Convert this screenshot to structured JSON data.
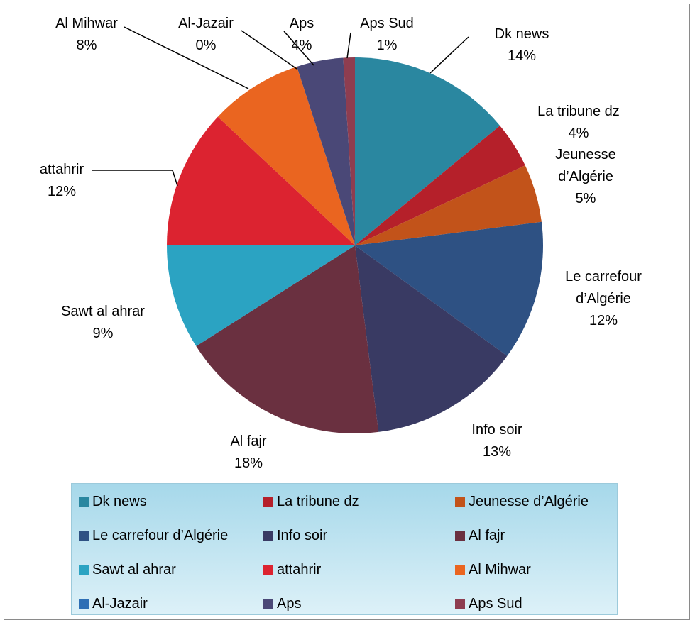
{
  "chart_data": {
    "type": "pie",
    "categories": [
      "Dk news",
      "La tribune dz",
      "Jeunesse d’Algérie",
      "Le carrefour d’Algérie",
      "Info soir",
      "Al fajr",
      "Sawt al ahrar",
      "attahrir",
      "Al Mihwar",
      "Al-Jazair",
      "Aps",
      "Aps Sud"
    ],
    "values": [
      14,
      4,
      5,
      12,
      13,
      18,
      9,
      12,
      8,
      0,
      4,
      1
    ],
    "value_labels": [
      "14%",
      "4%",
      "5%",
      "12%",
      "13%",
      "18%",
      "9%",
      "12%",
      "8%",
      "0%",
      "4%",
      "1%"
    ],
    "colors": [
      "#2a87a0",
      "#b5202a",
      "#c2531a",
      "#2e5183",
      "#393a63",
      "#6a3040",
      "#2ba3c2",
      "#dc2330",
      "#ea6520",
      "#2e6fb5",
      "#4a4877",
      "#8e3d50"
    ],
    "legend": "bottom"
  }
}
